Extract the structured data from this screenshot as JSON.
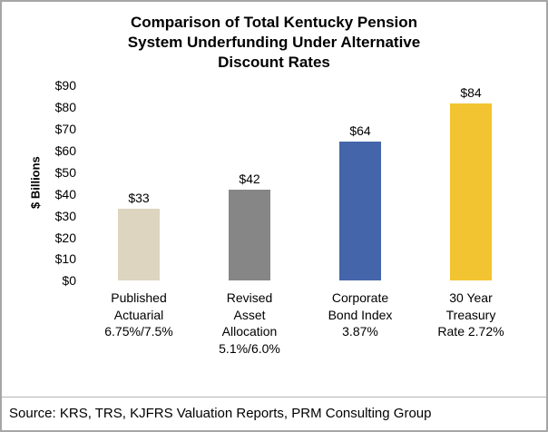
{
  "title_lines": [
    "Comparison of Total Kentucky Pension",
    "System Underfunding Under Alternative",
    "Discount Rates"
  ],
  "source_note": "Source: KRS, TRS, KJFRS Valuation Reports, PRM Consulting Group",
  "chart_data": {
    "type": "bar",
    "title": "Comparison of Total Kentucky Pension System Underfunding Under Alternative Discount Rates",
    "ylabel": "$ Billions",
    "xlabel": "",
    "ylim": [
      0,
      90
    ],
    "ytick_step": 10,
    "ytick_prefix": "$",
    "grid": false,
    "legend": false,
    "categories": [
      [
        "Published",
        "Actuarial",
        "6.75%/7.5%"
      ],
      [
        "Revised",
        "Asset",
        "Allocation",
        "5.1%/6.0%"
      ],
      [
        "Corporate",
        "Bond Index",
        "3.87%"
      ],
      [
        "30 Year",
        "Treasury",
        "Rate 2.72%"
      ]
    ],
    "values": [
      33,
      42,
      64,
      84
    ],
    "value_labels": [
      "$33",
      "$42",
      "$64",
      "$84"
    ],
    "bar_colors": [
      "#ddd5c0",
      "#868686",
      "#4565ab",
      "#f3c431"
    ]
  },
  "colors": {
    "frame_border": "#a6a6a6",
    "divider": "#b3b3b3",
    "text": "#000000"
  }
}
